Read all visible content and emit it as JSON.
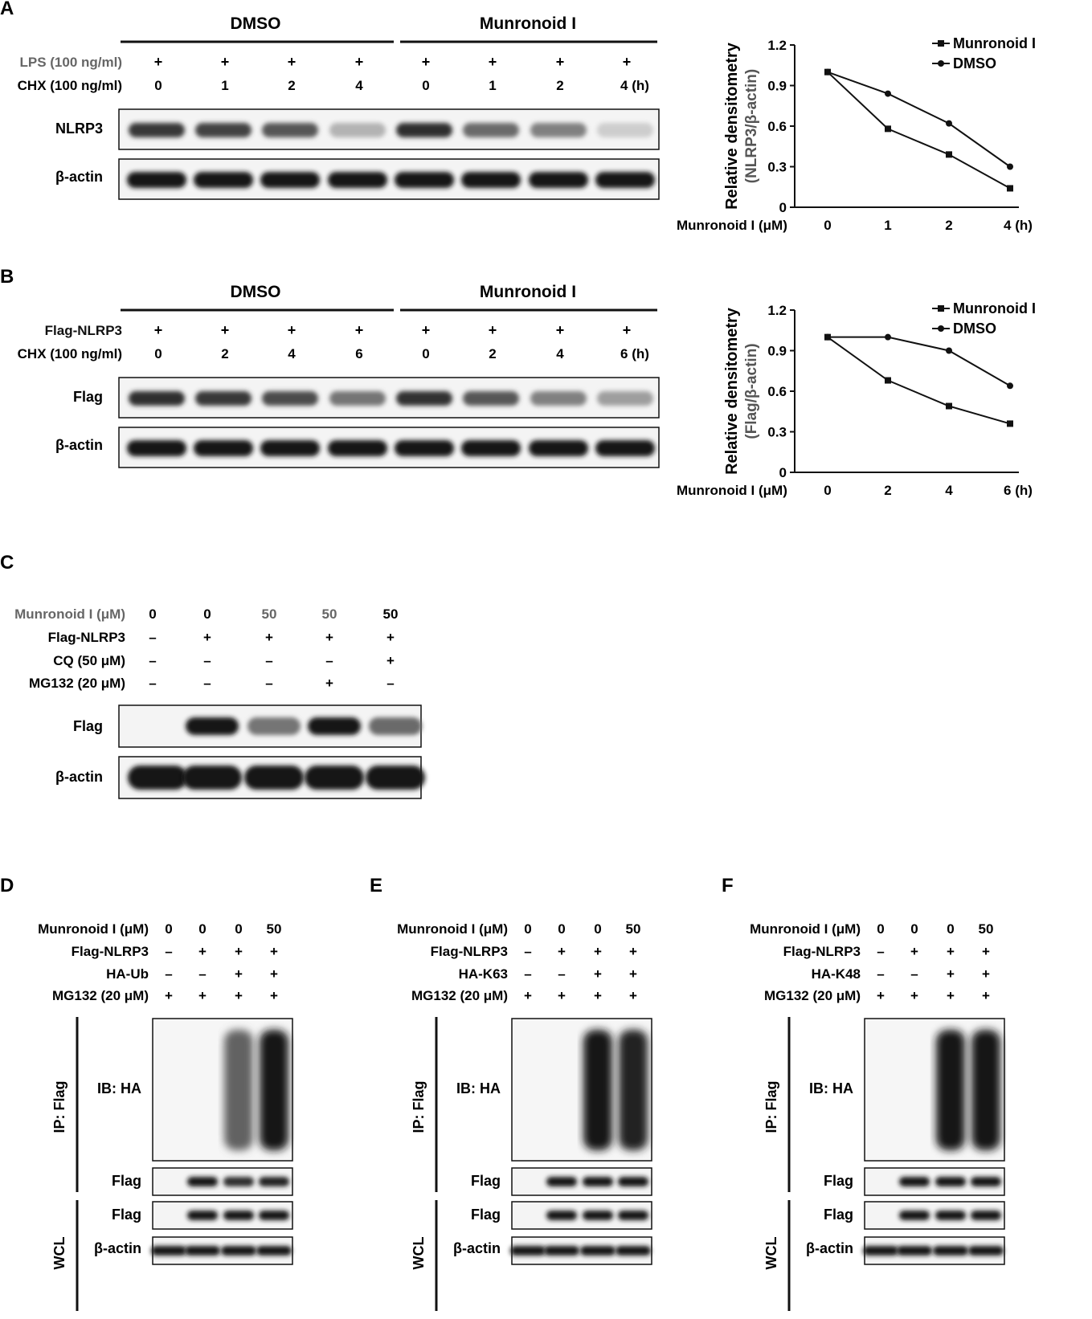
{
  "panels": {
    "A": {
      "letter": "A",
      "groups": [
        "DMSO",
        "Munronoid I"
      ],
      "treat1_label": "LPS (100 ng/ml)",
      "treat1_values": [
        "+",
        "+",
        "+",
        "+",
        "+",
        "+",
        "+",
        "+"
      ],
      "treat2_label": "CHX (100 ng/ml)",
      "treat2_values": [
        "0",
        "1",
        "2",
        "4",
        "0",
        "1",
        "2",
        "4 (h)"
      ],
      "blot1_label": "NLRP3",
      "blot1_intensity": [
        0.85,
        0.8,
        0.7,
        0.25,
        0.9,
        0.6,
        0.5,
        0.12
      ],
      "blot2_label": "β-actin",
      "blot2_intensity": [
        1,
        1,
        1,
        1,
        1,
        1,
        1,
        1
      ]
    },
    "B": {
      "letter": "B",
      "groups": [
        "DMSO",
        "Munronoid I"
      ],
      "treat1_label": "Flag-NLRP3",
      "treat1_values": [
        "+",
        "+",
        "+",
        "+",
        "+",
        "+",
        "+",
        "+"
      ],
      "treat2_label": "CHX (100 ng/ml)",
      "treat2_values": [
        "0",
        "2",
        "4",
        "6",
        "0",
        "2",
        "4",
        "6 (h)"
      ],
      "blot1_label": "Flag",
      "blot1_intensity": [
        0.9,
        0.85,
        0.75,
        0.55,
        0.88,
        0.7,
        0.5,
        0.35
      ],
      "blot2_label": "β-actin",
      "blot2_intensity": [
        1,
        1,
        1,
        1,
        1,
        1,
        1,
        1
      ]
    },
    "C": {
      "letter": "C",
      "rows": [
        {
          "label": "Munronoid I (μM)",
          "values": [
            "0",
            "0",
            "50",
            "50",
            "50"
          ]
        },
        {
          "label": "Flag-NLRP3",
          "values": [
            "–",
            "+",
            "+",
            "+",
            "+"
          ]
        },
        {
          "label": "CQ (50 μM)",
          "values": [
            "–",
            "–",
            "–",
            "–",
            "+"
          ]
        },
        {
          "label": "MG132 (20 μM)",
          "values": [
            "–",
            "–",
            "–",
            "+",
            "–"
          ]
        }
      ],
      "blot1_label": "Flag",
      "blot1_intensity": [
        0,
        1,
        0.55,
        1,
        0.6
      ],
      "blot2_label": "β-actin",
      "blot2_intensity": [
        1,
        1,
        1,
        1,
        1
      ]
    },
    "D": {
      "letter": "D",
      "rows": [
        {
          "label": "Munronoid I (μM)",
          "values": [
            "0",
            "0",
            "0",
            "50"
          ]
        },
        {
          "label": "Flag-NLRP3",
          "values": [
            "–",
            "+",
            "+",
            "+"
          ]
        },
        {
          "label": "HA-Ub",
          "values": [
            "–",
            "–",
            "+",
            "+"
          ]
        },
        {
          "label": "MG132 (20 μM)",
          "values": [
            "+",
            "+",
            "+",
            "+"
          ]
        }
      ],
      "ip_label": "IP: Flag",
      "ib_label": "IB: HA",
      "ha_intensity": [
        0,
        0,
        0.55,
        0.95
      ],
      "flag_ip_label": "Flag",
      "flag_ip_intensity": [
        0,
        1,
        0.9,
        0.95
      ],
      "wcl_label": "WCL",
      "wcl_flag_label": "Flag",
      "wcl_flag_intensity": [
        0,
        1,
        1,
        1
      ],
      "actin_label": "β-actin",
      "actin_intensity": [
        1,
        1,
        1,
        1
      ]
    },
    "E": {
      "letter": "E",
      "rows": [
        {
          "label": "Munronoid I (μM)",
          "values": [
            "0",
            "0",
            "0",
            "50"
          ]
        },
        {
          "label": "Flag-NLRP3",
          "values": [
            "–",
            "+",
            "+",
            "+"
          ]
        },
        {
          "label": "HA-K63",
          "values": [
            "–",
            "–",
            "+",
            "+"
          ]
        },
        {
          "label": "MG132 (20 μM)",
          "values": [
            "+",
            "+",
            "+",
            "+"
          ]
        }
      ],
      "ip_label": "IP: Flag",
      "ib_label": "IB: HA",
      "ha_intensity": [
        0,
        0,
        0.95,
        0.9
      ],
      "flag_ip_label": "Flag",
      "flag_ip_intensity": [
        0,
        1,
        1,
        1
      ],
      "wcl_label": "WCL",
      "wcl_flag_label": "Flag",
      "wcl_flag_intensity": [
        0,
        1,
        1,
        1
      ],
      "actin_label": "β-actin",
      "actin_intensity": [
        1,
        1,
        1,
        1
      ]
    },
    "F": {
      "letter": "F",
      "rows": [
        {
          "label": "Munronoid I (μM)",
          "values": [
            "0",
            "0",
            "0",
            "50"
          ]
        },
        {
          "label": "Flag-NLRP3",
          "values": [
            "–",
            "+",
            "+",
            "+"
          ]
        },
        {
          "label": "HA-K48",
          "values": [
            "–",
            "–",
            "+",
            "+"
          ]
        },
        {
          "label": "MG132 (20 μM)",
          "values": [
            "+",
            "+",
            "+",
            "+"
          ]
        }
      ],
      "ip_label": "IP: Flag",
      "ib_label": "IB: HA",
      "ha_intensity": [
        0,
        0,
        0.95,
        0.95
      ],
      "flag_ip_label": "Flag",
      "flag_ip_intensity": [
        0,
        1,
        1,
        1
      ],
      "wcl_label": "WCL",
      "wcl_flag_label": "Flag",
      "wcl_flag_intensity": [
        0,
        1,
        1,
        1
      ],
      "actin_label": "β-actin",
      "actin_intensity": [
        1,
        1,
        1,
        1
      ]
    }
  },
  "chart_data": [
    {
      "type": "line",
      "panel": "A",
      "categories": [
        "0",
        "1",
        "2",
        "4 (h)"
      ],
      "x_prefix": "Munronoid I (μM)",
      "ylabel": "Relative densitometry",
      "ylabel2": "(NLRP3/β-actin)",
      "ylim": [
        0,
        1.2
      ],
      "yticks": [
        "0",
        "0.3",
        "0.6",
        "0.9",
        "1.2"
      ],
      "legend_position": "top-right",
      "series": [
        {
          "name": "Munronoid I",
          "marker": "square",
          "values": [
            1.0,
            0.58,
            0.39,
            0.14
          ]
        },
        {
          "name": "DMSO",
          "marker": "circle",
          "values": [
            1.0,
            0.84,
            0.62,
            0.3
          ]
        }
      ]
    },
    {
      "type": "line",
      "panel": "B",
      "categories": [
        "0",
        "2",
        "4",
        "6 (h)"
      ],
      "x_prefix": "Munronoid I (μM)",
      "ylabel": "Relative densitometry",
      "ylabel2": "(Flag/β-actin)",
      "ylim": [
        0,
        1.2
      ],
      "yticks": [
        "0",
        "0.3",
        "0.6",
        "0.9",
        "1.2"
      ],
      "legend_position": "top-right",
      "series": [
        {
          "name": "Munronoid I",
          "marker": "square",
          "values": [
            1.0,
            0.68,
            0.49,
            0.36
          ]
        },
        {
          "name": "DMSO",
          "marker": "circle",
          "values": [
            1.0,
            1.0,
            0.9,
            0.64
          ]
        }
      ]
    }
  ]
}
